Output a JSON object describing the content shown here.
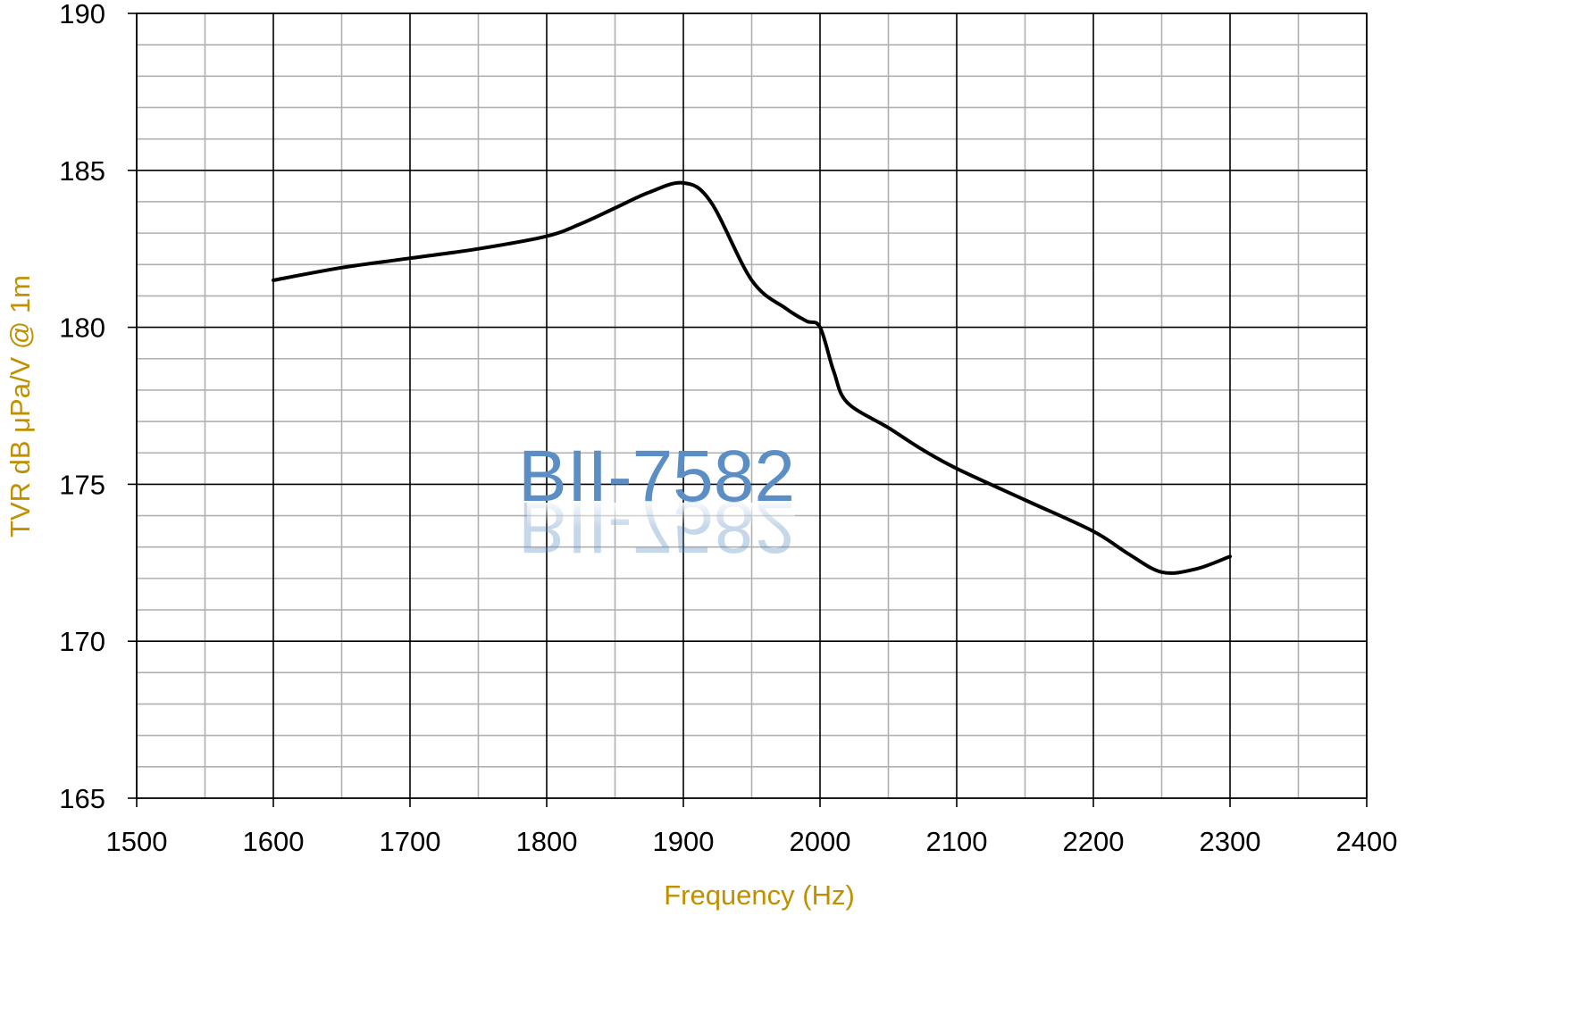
{
  "chart_data": {
    "type": "line",
    "title": "",
    "watermark_text": "BII-7582",
    "xlabel": "Frequency (Hz)",
    "ylabel": "TVR dB μPa/V @ 1m",
    "xlim": [
      1500,
      2400
    ],
    "ylim": [
      165,
      190
    ],
    "x_major_ticks": [
      1500,
      1600,
      1700,
      1800,
      1900,
      2000,
      2100,
      2200,
      2300,
      2400
    ],
    "y_major_ticks": [
      165,
      170,
      175,
      180,
      185,
      190
    ],
    "x_minor_step": 50,
    "y_minor_step": 1,
    "grid": true,
    "legend": "none",
    "colors": {
      "axis_title": "#c09000",
      "watermark": "#5b8ec4",
      "line": "#000000",
      "major_grid": "#000000",
      "minor_grid": "#b0b0b0"
    },
    "series": [
      {
        "x": [
          1600,
          1650,
          1700,
          1750,
          1800,
          1825,
          1850,
          1875,
          1900,
          1920,
          1950,
          1975,
          1990,
          2000,
          2010,
          2020,
          2050,
          2075,
          2100,
          2150,
          2200,
          2225,
          2250,
          2275,
          2300
        ],
        "y": [
          181.5,
          181.9,
          182.2,
          182.5,
          182.9,
          183.3,
          183.8,
          184.3,
          184.6,
          184.0,
          181.5,
          180.6,
          180.2,
          180.0,
          178.6,
          177.6,
          176.8,
          176.1,
          175.5,
          174.5,
          173.5,
          172.8,
          172.2,
          172.3,
          172.7
        ]
      }
    ]
  }
}
